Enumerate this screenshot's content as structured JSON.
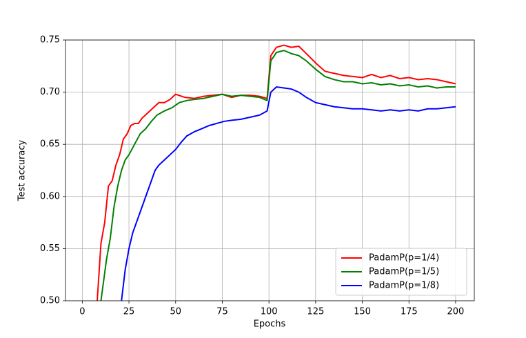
{
  "chart_data": {
    "type": "line",
    "xlabel": "Epochs",
    "ylabel": "Test accuracy",
    "xlim": [
      -9,
      210
    ],
    "xticks": [
      0,
      25,
      50,
      75,
      100,
      125,
      150,
      175,
      200
    ],
    "ylim": [
      0.5,
      0.75
    ],
    "yticks": [
      {
        "value": 0.5,
        "label": "0.50"
      },
      {
        "value": 0.55,
        "label": "0.55"
      },
      {
        "value": 0.6,
        "label": "0.60"
      },
      {
        "value": 0.65,
        "label": "0.65"
      },
      {
        "value": 0.7,
        "label": "0.70"
      },
      {
        "value": 0.75,
        "label": "0.75"
      }
    ],
    "grid": true,
    "legend": "lower right",
    "series": [
      {
        "name": "PadamP(p=1/4)",
        "color": "#ff0000",
        "x": [
          8,
          10,
          12,
          14,
          16,
          18,
          20,
          22,
          24,
          26,
          28,
          30,
          32,
          35,
          38,
          41,
          44,
          47,
          50,
          55,
          60,
          65,
          70,
          75,
          80,
          85,
          90,
          95,
          99,
          101,
          104,
          108,
          112,
          116,
          120,
          125,
          130,
          135,
          140,
          145,
          150,
          155,
          160,
          165,
          170,
          175,
          180,
          185,
          190,
          195,
          200
        ],
        "values": [
          0.5,
          0.555,
          0.575,
          0.61,
          0.615,
          0.63,
          0.64,
          0.655,
          0.66,
          0.668,
          0.67,
          0.67,
          0.675,
          0.68,
          0.685,
          0.69,
          0.69,
          0.693,
          0.698,
          0.695,
          0.694,
          0.696,
          0.697,
          0.698,
          0.695,
          0.697,
          0.697,
          0.696,
          0.694,
          0.735,
          0.743,
          0.745,
          0.743,
          0.744,
          0.737,
          0.728,
          0.72,
          0.718,
          0.716,
          0.715,
          0.714,
          0.717,
          0.714,
          0.716,
          0.713,
          0.714,
          0.712,
          0.713,
          0.712,
          0.71,
          0.708
        ]
      },
      {
        "name": "PadamP(p=1/5)",
        "color": "#008000",
        "x": [
          10,
          13,
          15,
          17,
          19,
          21,
          23,
          25,
          28,
          31,
          34,
          37,
          40,
          44,
          48,
          52,
          56,
          60,
          65,
          70,
          75,
          80,
          85,
          90,
          95,
          99,
          101,
          104,
          108,
          112,
          116,
          120,
          125,
          130,
          135,
          140,
          145,
          150,
          155,
          160,
          165,
          170,
          175,
          180,
          185,
          190,
          195,
          200
        ],
        "values": [
          0.5,
          0.54,
          0.56,
          0.59,
          0.61,
          0.625,
          0.635,
          0.64,
          0.65,
          0.66,
          0.665,
          0.672,
          0.678,
          0.682,
          0.685,
          0.69,
          0.692,
          0.693,
          0.694,
          0.696,
          0.698,
          0.696,
          0.697,
          0.696,
          0.695,
          0.692,
          0.73,
          0.738,
          0.74,
          0.737,
          0.735,
          0.73,
          0.722,
          0.715,
          0.712,
          0.71,
          0.71,
          0.708,
          0.709,
          0.707,
          0.708,
          0.706,
          0.707,
          0.705,
          0.706,
          0.704,
          0.705,
          0.705
        ]
      },
      {
        "name": "PadamP(p=1/8)",
        "color": "#0000ff",
        "x": [
          21,
          23,
          25,
          27,
          29,
          31,
          33,
          35,
          37,
          39,
          41,
          44,
          47,
          50,
          53,
          56,
          60,
          64,
          68,
          72,
          76,
          80,
          85,
          90,
          95,
          99,
          101,
          104,
          108,
          112,
          116,
          120,
          125,
          130,
          135,
          140,
          145,
          150,
          155,
          160,
          165,
          170,
          175,
          180,
          185,
          190,
          195,
          200
        ],
        "values": [
          0.5,
          0.53,
          0.55,
          0.565,
          0.575,
          0.585,
          0.595,
          0.605,
          0.615,
          0.625,
          0.63,
          0.635,
          0.64,
          0.645,
          0.652,
          0.658,
          0.662,
          0.665,
          0.668,
          0.67,
          0.672,
          0.673,
          0.674,
          0.676,
          0.678,
          0.682,
          0.7,
          0.705,
          0.704,
          0.703,
          0.7,
          0.695,
          0.69,
          0.688,
          0.686,
          0.685,
          0.684,
          0.684,
          0.683,
          0.682,
          0.683,
          0.682,
          0.683,
          0.682,
          0.684,
          0.684,
          0.685,
          0.686
        ]
      }
    ]
  }
}
